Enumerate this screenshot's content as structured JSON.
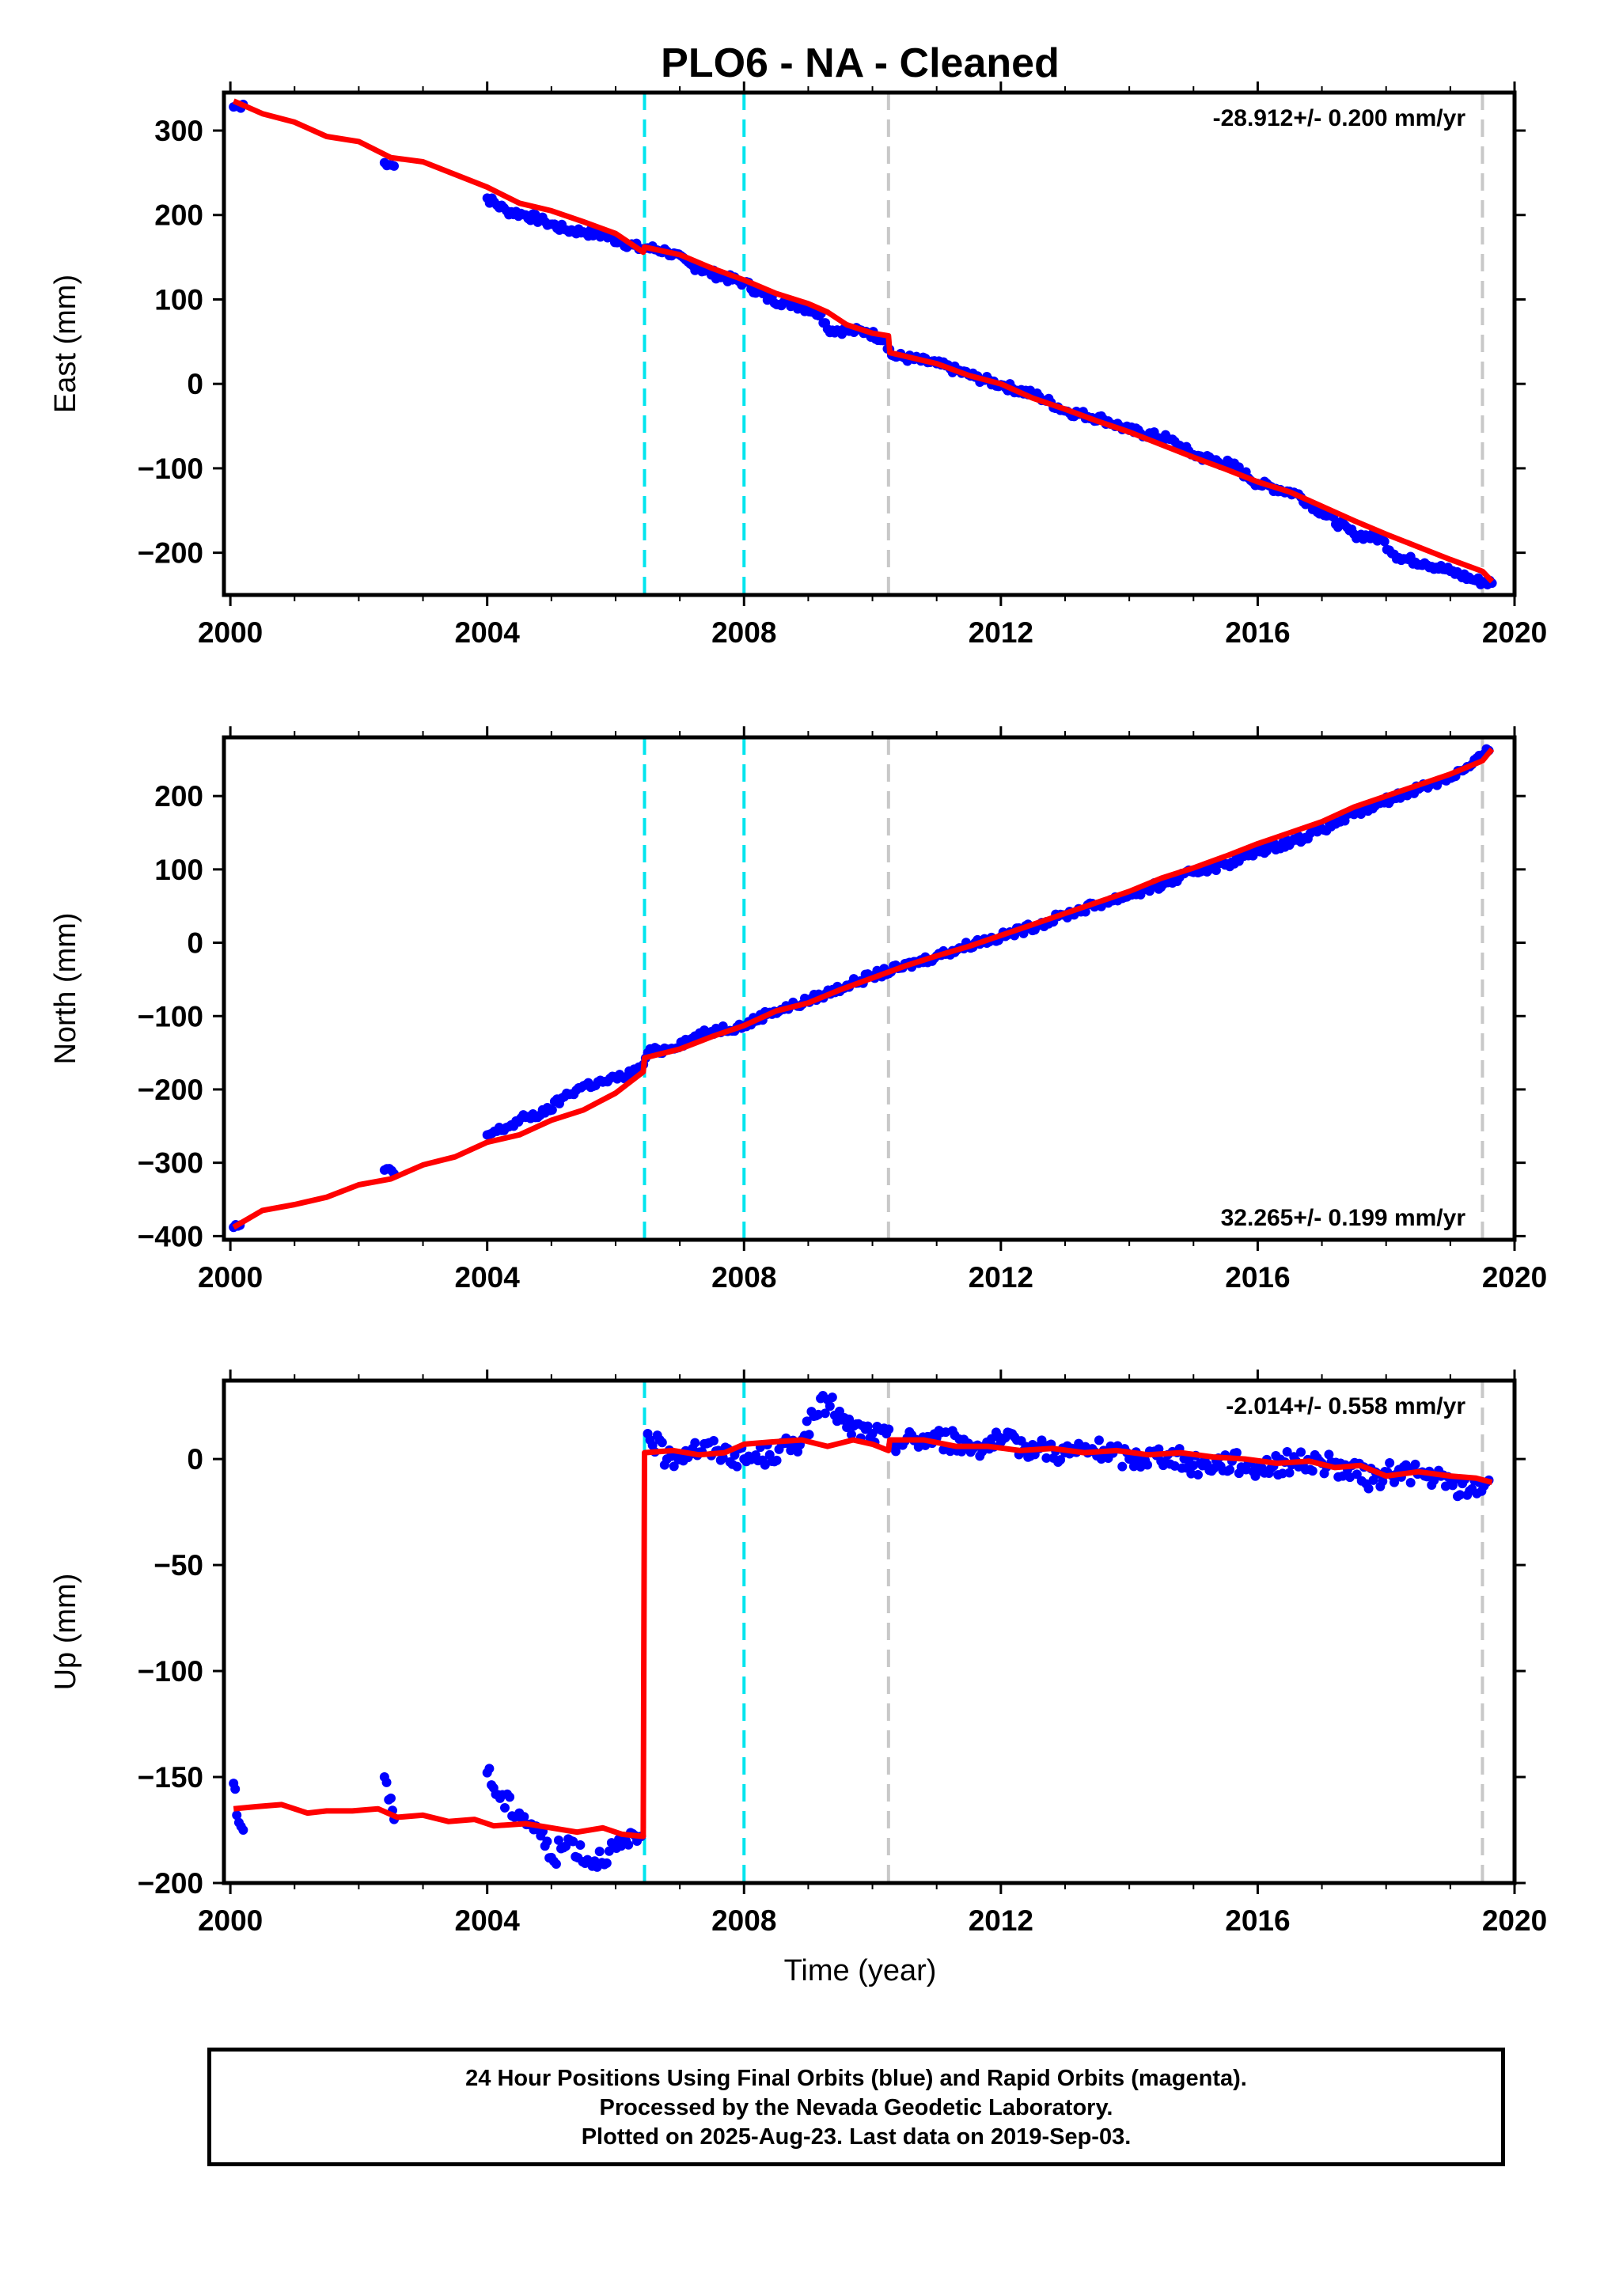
{
  "chart_data": {
    "title": "PLO6  - NA - Cleaned",
    "type": "scatter",
    "xlabel": "Time (year)",
    "xlim": [
      1999.9,
      2020.0
    ],
    "xticks": [
      "2000",
      "2004",
      "2008",
      "2012",
      "2016",
      "2020"
    ],
    "xtick_values": [
      2000,
      2004,
      2008,
      2012,
      2016,
      2020
    ],
    "colors": {
      "data": "#0000ff",
      "model": "#ff0000",
      "equipment_change": "#00e5ee",
      "other_event": "#c8c8c8",
      "frame": "#000000"
    },
    "event_lines": [
      {
        "year": 2006.45,
        "kind": "equipment_change"
      },
      {
        "year": 2008.0,
        "kind": "equipment_change"
      },
      {
        "year": 2010.25,
        "kind": "other_event"
      },
      {
        "year": 2019.5,
        "kind": "other_event"
      }
    ],
    "panels": [
      {
        "name": "east",
        "ylabel": "East (mm)",
        "ylim": [
          -250,
          345
        ],
        "yticks": [
          300,
          200,
          100,
          0,
          -100,
          -200
        ],
        "ytick_labels": [
          "300",
          "200",
          "100",
          "0",
          "−100",
          "−200"
        ],
        "rate_label": "-28.912+/- 0.200 mm/yr",
        "rate_position": "top-right",
        "series": [
          {
            "label": "daily positions",
            "kind": "points",
            "x": [
              2000.05,
              2000.2,
              2002.4,
              2002.55,
              2004.0,
              2004.3,
              2004.6,
              2004.9,
              2005.2,
              2005.5,
              2005.8,
              2006.1,
              2006.4,
              2006.5,
              2006.8,
              2007.2,
              2007.6,
              2008.0,
              2008.4,
              2008.8,
              2009.2,
              2009.3,
              2009.6,
              2009.9,
              2010.2,
              2010.3,
              2011.0,
              2011.6,
              2012.0,
              2012.6,
              2013.0,
              2013.6,
              2014.0,
              2014.6,
              2015.0,
              2015.6,
              2016.0,
              2016.6,
              2017.0,
              2017.5,
              2017.9,
              2018.2,
              2018.6,
              2019.0,
              2019.4,
              2019.65
            ],
            "y": [
              328,
              331,
              262,
              258,
              220,
              205,
              200,
              192,
              183,
              180,
              176,
              168,
              160,
              161,
              157,
              140,
              128,
              120,
              100,
              94,
              83,
              65,
              63,
              62,
              52,
              34,
              24,
              8,
              -1,
              -15,
              -32,
              -42,
              -55,
              -65,
              -84,
              -96,
              -118,
              -130,
              -152,
              -178,
              -183,
              -206,
              -212,
              -222,
              -233,
              -236
            ]
          },
          {
            "label": "model",
            "kind": "line",
            "x": [
              2000.05,
              2000.5,
              2001.0,
              2001.5,
              2002.0,
              2002.5,
              2003.0,
              2003.5,
              2004.0,
              2004.5,
              2005.0,
              2005.5,
              2006.0,
              2006.43,
              2006.45,
              2007.0,
              2007.5,
              2008.0,
              2008.5,
              2009.0,
              2009.3,
              2009.6,
              2010.0,
              2010.25,
              2010.27,
              2011.0,
              2011.5,
              2012.0,
              2012.5,
              2013.0,
              2013.5,
              2014.0,
              2014.5,
              2015.0,
              2015.5,
              2016.0,
              2016.5,
              2017.0,
              2017.5,
              2018.0,
              2018.5,
              2019.0,
              2019.5,
              2019.65
            ],
            "y": [
              335,
              320,
              310,
              293,
              287,
              268,
              263,
              248,
              233,
              214,
              205,
              192,
              178,
              156,
              162,
              153,
              137,
              123,
              107,
              95,
              85,
              70,
              60,
              57,
              37,
              24,
              10,
              0,
              -17,
              -30,
              -44,
              -57,
              -72,
              -87,
              -101,
              -116,
              -128,
              -145,
              -162,
              -178,
              -193,
              -208,
              -222,
              -234
            ]
          }
        ]
      },
      {
        "name": "north",
        "ylabel": "North (mm)",
        "ylim": [
          -405,
          280
        ],
        "yticks": [
          200,
          100,
          0,
          -100,
          -200,
          -300,
          -400
        ],
        "ytick_labels": [
          "200",
          "100",
          "0",
          "−100",
          "−200",
          "−300",
          "−400"
        ],
        "rate_label": "32.265+/- 0.199 mm/yr",
        "rate_position": "bottom-right",
        "series": [
          {
            "label": "daily positions",
            "kind": "points",
            "x": [
              2000.05,
              2000.15,
              2002.4,
              2002.55,
              2004.0,
              2004.3,
              2004.6,
              2004.9,
              2005.2,
              2005.5,
              2005.8,
              2006.1,
              2006.4,
              2006.5,
              2006.8,
              2007.2,
              2007.6,
              2008.0,
              2008.4,
              2008.8,
              2009.2,
              2009.6,
              2010.0,
              2010.4,
              2011.0,
              2011.6,
              2012.0,
              2012.6,
              2013.0,
              2013.6,
              2014.0,
              2014.6,
              2015.0,
              2015.6,
              2016.0,
              2016.6,
              2017.0,
              2017.5,
              2017.9,
              2018.4,
              2018.9,
              2019.3,
              2019.6
            ],
            "y": [
              -388,
              -385,
              -310,
              -315,
              -262,
              -252,
              -238,
              -232,
              -210,
              -195,
              -190,
              -183,
              -172,
              -150,
              -145,
              -130,
              -118,
              -113,
              -95,
              -85,
              -72,
              -58,
              -45,
              -35,
              -18,
              0,
              8,
              25,
              38,
              55,
              65,
              82,
              96,
              110,
              125,
              140,
              155,
              175,
              190,
              208,
              222,
              240,
              262
            ]
          },
          {
            "label": "model",
            "kind": "line",
            "x": [
              2000.05,
              2000.5,
              2001.0,
              2001.5,
              2002.0,
              2002.5,
              2003.0,
              2003.5,
              2004.0,
              2004.5,
              2005.0,
              2005.5,
              2006.0,
              2006.43,
              2006.45,
              2007.0,
              2007.5,
              2008.0,
              2008.5,
              2009.0,
              2009.5,
              2010.0,
              2010.5,
              2011.0,
              2011.5,
              2012.0,
              2012.5,
              2013.0,
              2013.5,
              2014.0,
              2014.5,
              2015.0,
              2015.5,
              2016.0,
              2016.5,
              2017.0,
              2017.5,
              2018.0,
              2018.5,
              2019.0,
              2019.5,
              2019.65
            ],
            "y": [
              -388,
              -365,
              -357,
              -347,
              -330,
              -322,
              -303,
              -292,
              -272,
              -262,
              -242,
              -228,
              -205,
              -176,
              -157,
              -145,
              -128,
              -113,
              -93,
              -82,
              -64,
              -48,
              -32,
              -18,
              -5,
              10,
              25,
              40,
              55,
              70,
              88,
              102,
              118,
              135,
              150,
              165,
              185,
              200,
              215,
              230,
              248,
              264
            ]
          }
        ]
      },
      {
        "name": "up",
        "ylabel": "Up (mm)",
        "ylim": [
          -200,
          37
        ],
        "yticks": [
          0,
          -50,
          -100,
          -150,
          -200
        ],
        "ytick_labels": [
          "0",
          "−50",
          "−100",
          "−150",
          "−200"
        ],
        "rate_label": "-2.014+/- 0.558 mm/yr",
        "rate_position": "top-right",
        "series": [
          {
            "label": "daily positions",
            "kind": "points",
            "x": [
              2000.05,
              2000.1,
              2000.2,
              2002.4,
              2002.5,
              2002.55,
              2004.0,
              2004.2,
              2004.5,
              2004.8,
              2005.0,
              2005.3,
              2005.6,
              2005.9,
              2006.2,
              2006.4,
              2006.5,
              2006.8,
              2007.2,
              2007.6,
              2008.0,
              2008.4,
              2008.8,
              2009.3,
              2009.6,
              2010.0,
              2010.4,
              2011.0,
              2011.6,
              2012.0,
              2012.6,
              2013.0,
              2013.6,
              2014.0,
              2014.6,
              2015.0,
              2015.6,
              2016.0,
              2016.6,
              2017.0,
              2017.4,
              2017.8,
              2018.2,
              2018.6,
              2019.0,
              2019.3,
              2019.6
            ],
            "y": [
              -153,
              -168,
              -175,
              -150,
              -160,
              -170,
              -148,
              -160,
              -167,
              -175,
              -188,
              -180,
              -190,
              -185,
              -182,
              -178,
              12,
              0,
              5,
              4,
              0,
              2,
              7,
              28,
              15,
              12,
              8,
              10,
              6,
              8,
              5,
              3,
              4,
              0,
              2,
              -3,
              -1,
              -4,
              -1,
              -2,
              -5,
              -10,
              -5,
              -8,
              -12,
              -15,
              -10
            ]
          },
          {
            "label": "model",
            "kind": "line",
            "x": [
              2000.05,
              2000.4,
              2000.8,
              2001.2,
              2001.5,
              2001.9,
              2002.3,
              2002.6,
              2003.0,
              2003.4,
              2003.8,
              2004.1,
              2004.6,
              2005.0,
              2005.4,
              2005.8,
              2006.1,
              2006.43,
              2006.45,
              2006.9,
              2007.3,
              2007.7,
              2008.0,
              2008.4,
              2008.9,
              2009.3,
              2009.7,
              2010.0,
              2010.25,
              2010.27,
              2010.8,
              2011.3,
              2011.8,
              2012.3,
              2012.8,
              2013.3,
              2013.8,
              2014.3,
              2014.8,
              2015.3,
              2015.8,
              2016.3,
              2016.8,
              2017.2,
              2017.6,
              2018.0,
              2018.5,
              2019.0,
              2019.4,
              2019.65
            ],
            "y": [
              -165,
              -164,
              -163,
              -167,
              -166,
              -166,
              -165,
              -169,
              -168,
              -171,
              -170,
              -173,
              -172,
              -174,
              -176,
              -174,
              -177,
              -178,
              3,
              4,
              2,
              3,
              7,
              8,
              9,
              6,
              9,
              7,
              4,
              9,
              9,
              6,
              6,
              4,
              5,
              3,
              4,
              2,
              3,
              1,
              0,
              -2,
              -1,
              -4,
              -3,
              -8,
              -6,
              -8,
              -9,
              -11
            ]
          }
        ]
      }
    ],
    "caption": [
      "24 Hour Positions Using Final Orbits (blue) and Rapid Orbits (magenta).",
      "Processed by the Nevada Geodetic Laboratory.",
      "Plotted on 2025-Aug-23. Last data on 2019-Sep-03."
    ]
  }
}
